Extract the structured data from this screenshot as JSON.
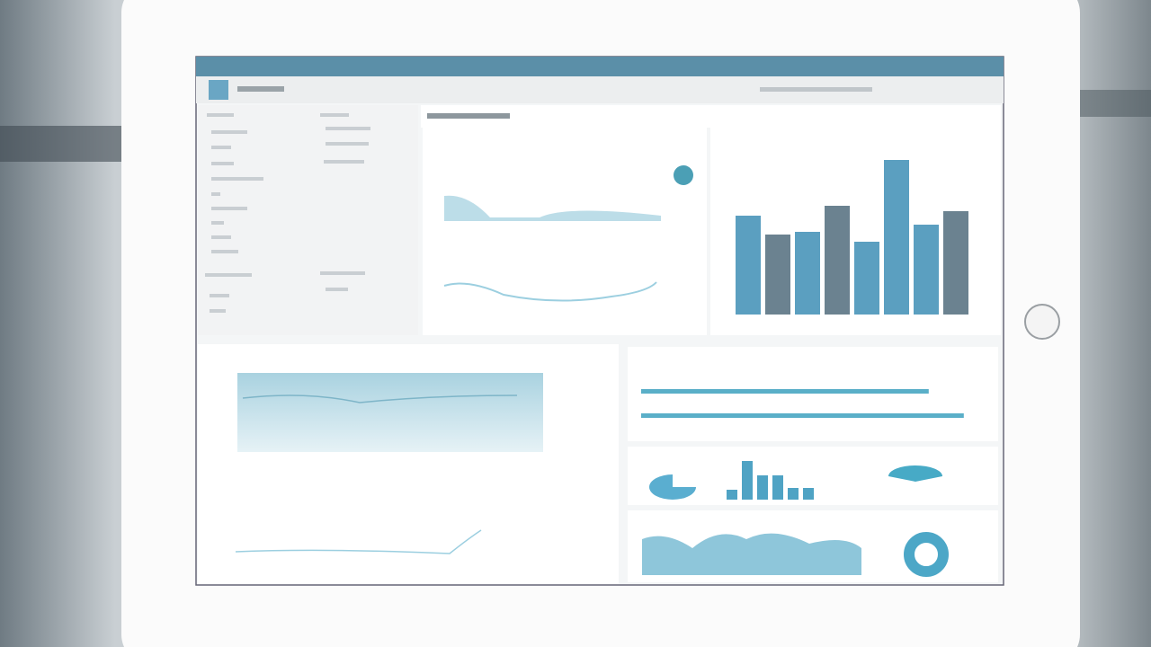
{
  "charts": [
    {
      "type": "bar",
      "ylim": [
        0,
        200
      ],
      "values": [
        110,
        89,
        92,
        121,
        81,
        172,
        100,
        115
      ],
      "colors": [
        "#5b9fc0",
        "#6b8290",
        "#5b9fc0",
        "#6b8290",
        "#5b9fc0",
        "#5b9fc0",
        "#5b9fc0",
        "#6b8290"
      ]
    },
    {
      "type": "bar",
      "ylim": [
        0,
        50
      ],
      "values": [
        11,
        43,
        27,
        27,
        13,
        13
      ],
      "color": "#4fa3c4"
    },
    {
      "type": "hbar",
      "xlim": [
        0,
        100
      ],
      "values": [
        82,
        92
      ],
      "color": "#5aafc8"
    }
  ]
}
